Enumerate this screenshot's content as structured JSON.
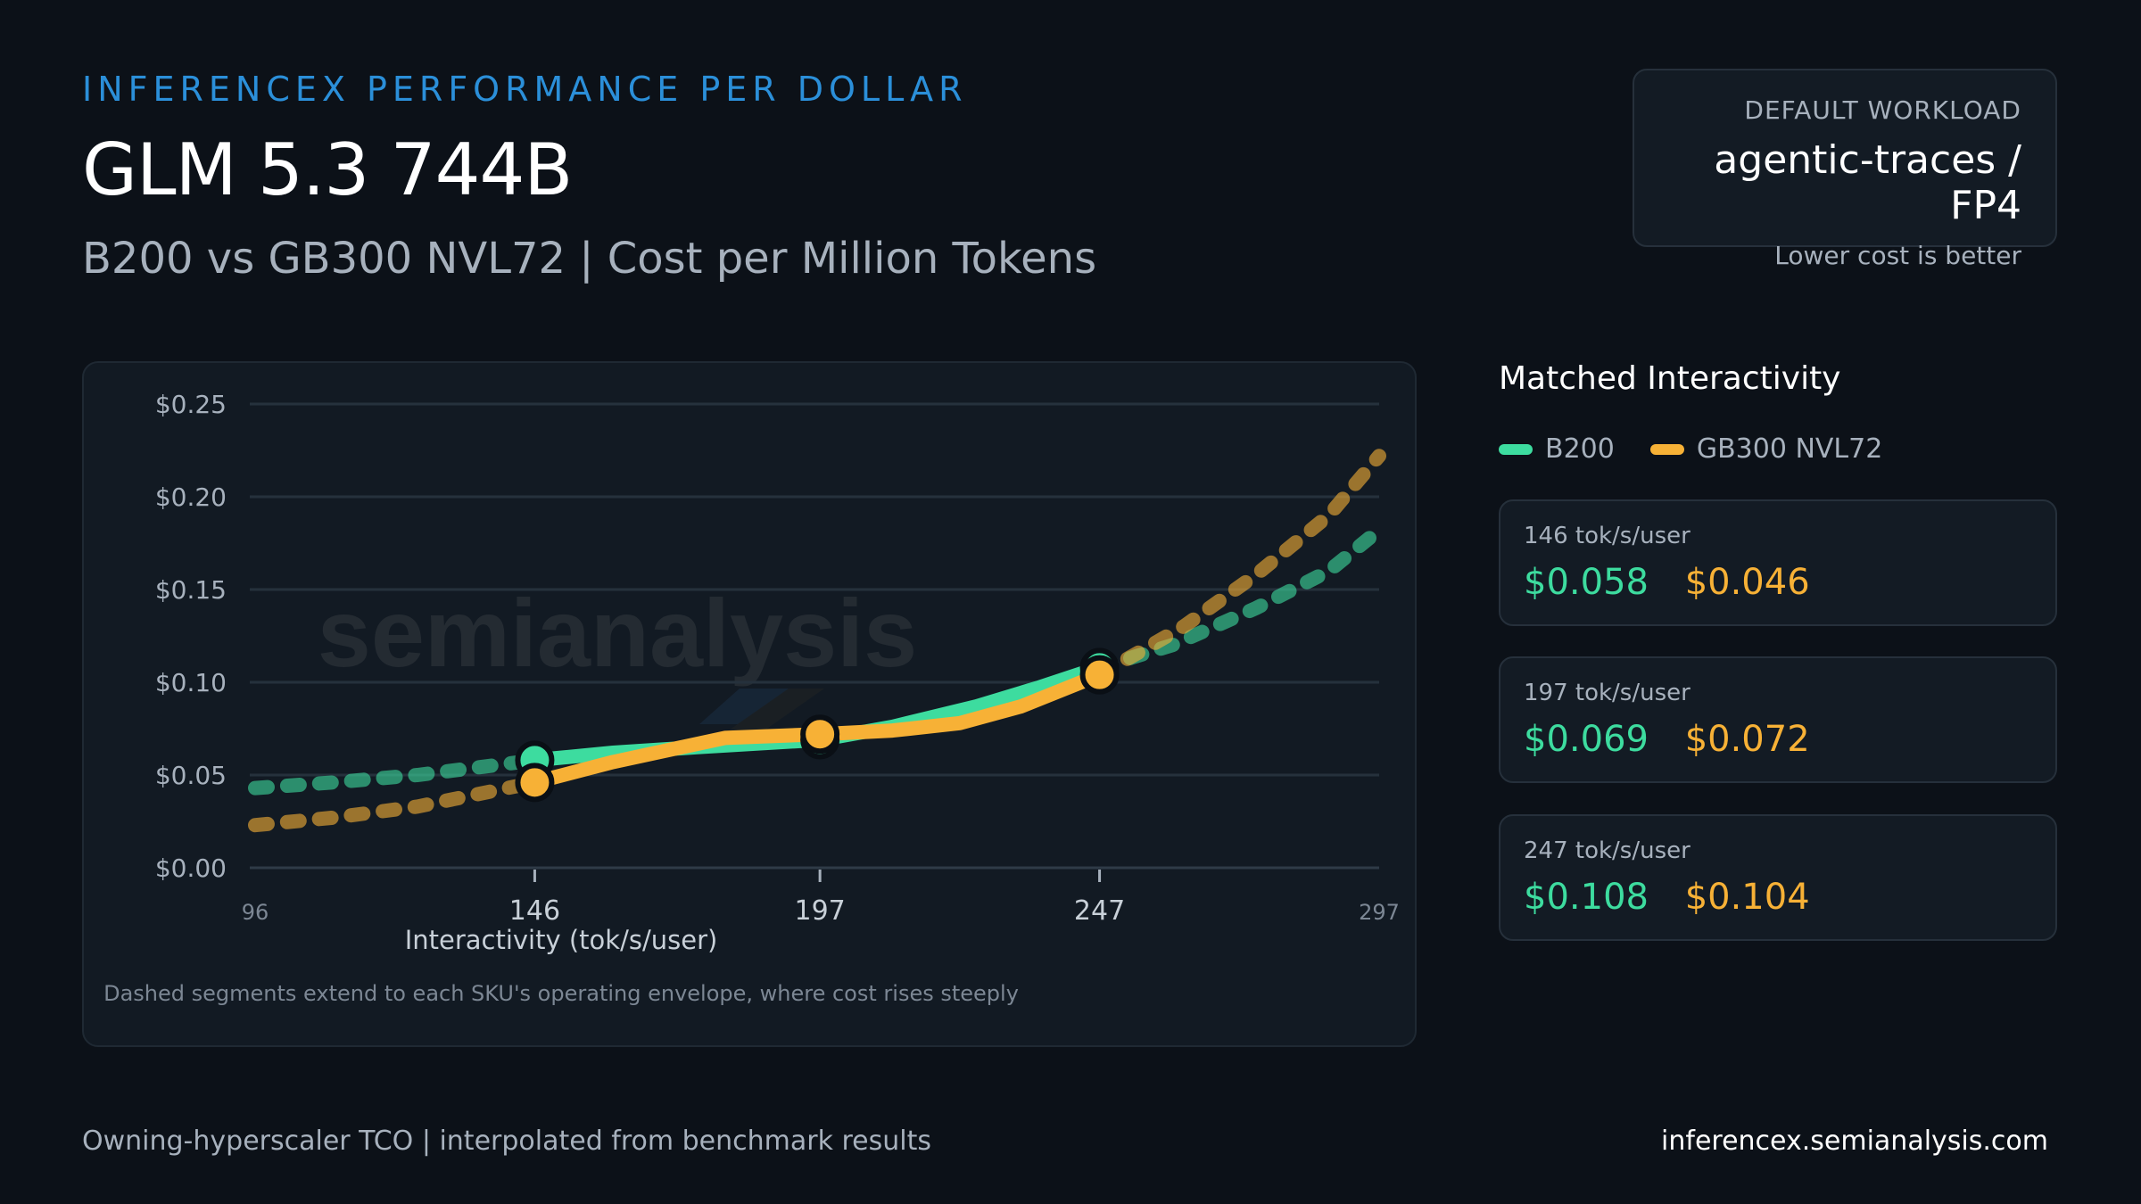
{
  "header": {
    "kicker": "INFERENCEX PERFORMANCE PER DOLLAR",
    "title": "GLM 5.3 744B",
    "subtitle": "B200 vs GB300 NVL72  | Cost per Million Tokens"
  },
  "workload": {
    "label": "DEFAULT  WORKLOAD",
    "value": "agentic-traces / FP4",
    "note": "Lower cost is better"
  },
  "side": {
    "title": "Matched Interactivity",
    "legend": [
      {
        "name": "B200",
        "color": "#3ddc9f"
      },
      {
        "name": "GB300 NVL72",
        "color": "#f7b136"
      }
    ],
    "cards": [
      {
        "label": "146 tok/s/user",
        "b200": "$0.058",
        "gb300": "$0.046"
      },
      {
        "label": "197 tok/s/user",
        "b200": "$0.069",
        "gb300": "$0.072"
      },
      {
        "label": "247 tok/s/user",
        "b200": "$0.108",
        "gb300": "$0.104"
      }
    ]
  },
  "footer": {
    "left": "Owning-hyperscaler  TCO | interpolated  from benchmark results",
    "right": "inferencex.semianalysis.com"
  },
  "watermark": "semianalysis",
  "chart_data": {
    "type": "line",
    "xlabel": "Interactivity  (tok/s/user)",
    "ylabel": "",
    "note": "Dashed segments extend  to each SKU's operating  envelope, where cost rises steeply",
    "xlim": [
      96,
      297
    ],
    "ylim": [
      0,
      0.25
    ],
    "x_ticks": [
      {
        "value": 96,
        "label": "96",
        "major": false
      },
      {
        "value": 146,
        "label": "146",
        "major": true
      },
      {
        "value": 197,
        "label": "197",
        "major": true
      },
      {
        "value": 247,
        "label": "247",
        "major": true
      },
      {
        "value": 297,
        "label": "297",
        "major": false
      }
    ],
    "y_ticks": [
      {
        "value": 0.0,
        "label": "$0.00"
      },
      {
        "value": 0.05,
        "label": "$0.05"
      },
      {
        "value": 0.1,
        "label": "$0.10"
      },
      {
        "value": 0.15,
        "label": "$0.15"
      },
      {
        "value": 0.2,
        "label": "$0.20"
      },
      {
        "value": 0.25,
        "label": "$0.25"
      }
    ],
    "grid": true,
    "series": [
      {
        "name": "B200",
        "color": "#3ddc9f",
        "dashed_low": [
          [
            96,
            0.043
          ],
          [
            110,
            0.046
          ],
          [
            125,
            0.05
          ],
          [
            146,
            0.058
          ]
        ],
        "solid": [
          [
            146,
            0.058
          ],
          [
            160,
            0.062
          ],
          [
            175,
            0.065
          ],
          [
            197,
            0.069
          ],
          [
            210,
            0.076
          ],
          [
            225,
            0.087
          ],
          [
            236,
            0.097
          ],
          [
            247,
            0.108
          ]
        ],
        "dashed_high": [
          [
            247,
            0.108
          ],
          [
            260,
            0.12
          ],
          [
            275,
            0.14
          ],
          [
            288,
            0.16
          ],
          [
            297,
            0.182
          ]
        ],
        "markers": [
          [
            146,
            0.058
          ],
          [
            197,
            0.069
          ],
          [
            247,
            0.108
          ]
        ]
      },
      {
        "name": "GB300 NVL72",
        "color": "#f7b136",
        "dashed_low": [
          [
            96,
            0.023
          ],
          [
            110,
            0.027
          ],
          [
            125,
            0.033
          ],
          [
            146,
            0.046
          ]
        ],
        "solid": [
          [
            146,
            0.046
          ],
          [
            160,
            0.057
          ],
          [
            180,
            0.07
          ],
          [
            197,
            0.072
          ],
          [
            210,
            0.074
          ],
          [
            222,
            0.078
          ],
          [
            233,
            0.087
          ],
          [
            247,
            0.104
          ]
        ],
        "dashed_high": [
          [
            247,
            0.104
          ],
          [
            262,
            0.13
          ],
          [
            275,
            0.158
          ],
          [
            288,
            0.19
          ],
          [
            297,
            0.222
          ]
        ],
        "markers": [
          [
            146,
            0.046
          ],
          [
            197,
            0.072
          ],
          [
            247,
            0.104
          ]
        ]
      }
    ]
  }
}
